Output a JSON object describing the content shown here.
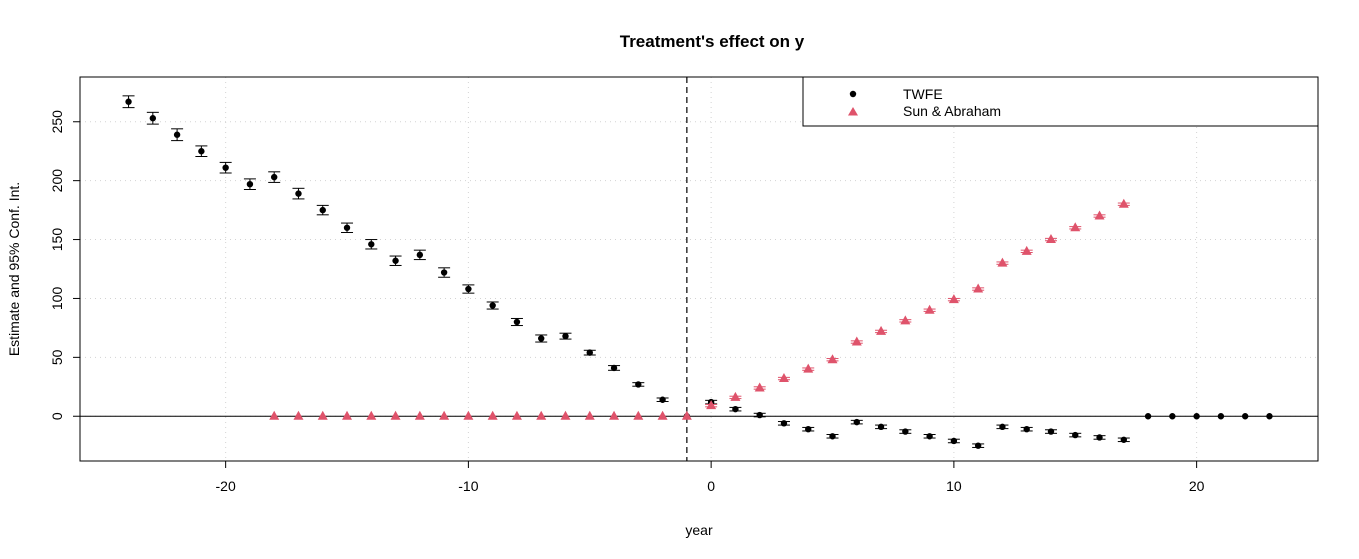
{
  "chart_data": {
    "type": "scatter",
    "title": "Treatment's effect on y",
    "xlabel": "year",
    "ylabel": "Estimate and 95% Conf. Int.",
    "xlim": [
      -26,
      25
    ],
    "ylim": [
      -38,
      288
    ],
    "xticks": [
      -20,
      -10,
      0,
      10,
      20
    ],
    "yticks": [
      0,
      50,
      100,
      150,
      200,
      250
    ],
    "xtick_labels": [
      "-20",
      "-10",
      "0",
      "10",
      "20"
    ],
    "ytick_labels": [
      "0",
      "50",
      "100",
      "150",
      "200",
      "250"
    ],
    "grid": true,
    "reference_vline": -1,
    "reference_hline": 0,
    "legend": {
      "position": "top-right",
      "entries": [
        "TWFE",
        "Sun & Abraham"
      ]
    },
    "series": [
      {
        "name": "TWFE",
        "marker": "circle",
        "color": "#000000",
        "x": [
          -24,
          -23,
          -22,
          -21,
          -20,
          -19,
          -18,
          -17,
          -16,
          -15,
          -14,
          -13,
          -12,
          -11,
          -10,
          -9,
          -8,
          -7,
          -6,
          -5,
          -4,
          -3,
          -2,
          -1,
          0,
          1,
          2,
          3,
          4,
          5,
          6,
          7,
          8,
          9,
          10,
          11,
          12,
          13,
          14,
          15,
          16,
          17,
          18,
          19,
          20,
          21,
          22,
          23
        ],
        "y": [
          267,
          253,
          239,
          225,
          211,
          197,
          203,
          189,
          175,
          160,
          146,
          132,
          137,
          122,
          108,
          94,
          80,
          66,
          68,
          54,
          41,
          27,
          14,
          0,
          12,
          6,
          1,
          -6,
          -11,
          -17,
          -5,
          -9,
          -13,
          -17,
          -21,
          -25,
          -9,
          -11,
          -13,
          -16,
          -18,
          -20,
          0,
          0,
          0,
          0,
          0,
          0
        ],
        "ci_half": [
          5,
          5,
          5,
          4.5,
          4.5,
          4.5,
          4.5,
          4.5,
          4,
          4,
          4,
          4,
          4,
          4,
          3.5,
          3,
          3,
          3,
          2.5,
          2,
          2,
          1.5,
          1.5,
          0,
          1.5,
          1.5,
          1.5,
          1.5,
          1.5,
          1.5,
          1.5,
          1.5,
          1.5,
          1.5,
          1.5,
          1.5,
          1.5,
          1.5,
          1.5,
          1.5,
          1.5,
          1.5,
          0,
          0,
          0,
          0,
          0,
          0
        ]
      },
      {
        "name": "Sun & Abraham",
        "marker": "triangle",
        "color": "#DF536B",
        "x": [
          -18,
          -17,
          -16,
          -15,
          -14,
          -13,
          -12,
          -11,
          -10,
          -9,
          -8,
          -7,
          -6,
          -5,
          -4,
          -3,
          -2,
          -1,
          0,
          1,
          2,
          3,
          4,
          5,
          6,
          7,
          8,
          9,
          10,
          11,
          12,
          13,
          14,
          15,
          16,
          17
        ],
        "y": [
          0,
          0,
          0,
          0,
          0,
          0,
          0,
          0,
          0,
          0,
          0,
          0,
          0,
          0,
          0,
          0,
          0,
          0,
          9,
          16,
          24,
          32,
          40,
          48,
          63,
          72,
          81,
          90,
          99,
          108,
          130,
          140,
          150,
          160,
          170,
          180
        ],
        "ci_half": [
          0,
          0,
          0,
          0,
          0,
          0,
          0,
          0,
          0,
          0,
          0,
          0,
          0,
          0,
          0,
          0,
          0,
          0,
          1,
          1,
          1,
          1,
          1,
          1,
          1,
          1,
          1,
          1,
          1,
          1,
          1,
          1,
          1,
          1,
          1,
          1
        ]
      }
    ]
  }
}
